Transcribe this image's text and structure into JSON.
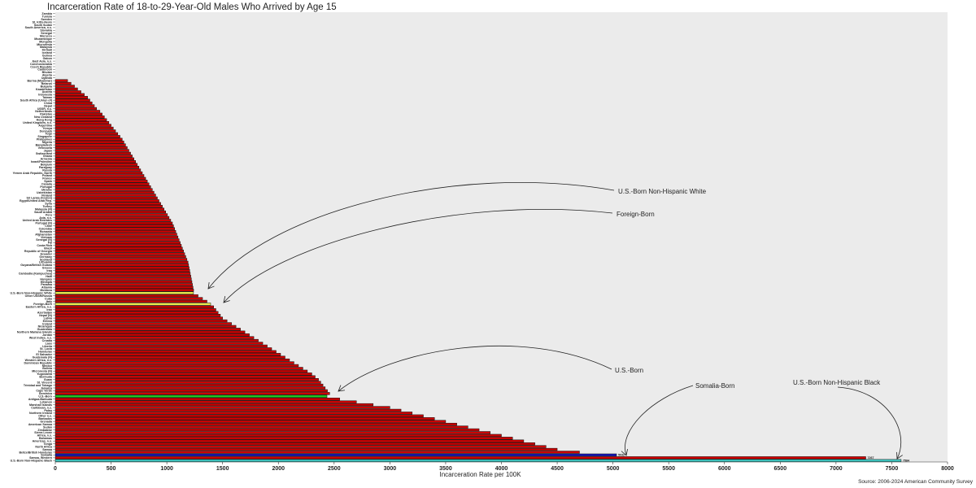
{
  "title": "Incarceration Rate of 18-to-29-Year-Old Males Who Arrived by Age 15",
  "source": "Source: 2006-2024 American Community Survey",
  "colors": {
    "panel": "#ebebeb",
    "bar": "#cc0000",
    "bar_outline": "#111111",
    "highlight_yellow": "#e8e84a",
    "highlight_green": "#22cc22",
    "highlight_blue": "#1515bb",
    "highlight_cyan": "#3fc6c0"
  },
  "annotations": [
    {
      "text": "U.S.-Born Non-Hispanic White",
      "target": "U.S.-Born Non-Hispanic White"
    },
    {
      "text": "Foreign-Born",
      "target": "Foreign-Born"
    },
    {
      "text": "U.S.-Born",
      "target": "U.S.-Born"
    },
    {
      "text": "Somalia-Born",
      "target": "Somalia"
    },
    {
      "text": "U.S.-Born Non-Hispanic Black",
      "target": "U.S.-Born Non-Hispanic Black"
    }
  ],
  "chart_data": {
    "type": "bar",
    "orientation": "horizontal",
    "title": "Incarceration Rate of 18-to-29-Year-Old Males Who Arrived by Age 15",
    "xlabel": "Incarceration Rate per 100K",
    "ylabel": "",
    "xlim": [
      0,
      8000
    ],
    "xticks": [
      0,
      500,
      1000,
      1500,
      2000,
      2500,
      3000,
      3500,
      4000,
      4500,
      5000,
      5500,
      6000,
      6500,
      7000,
      7500,
      8000
    ],
    "grid": false,
    "legend": "none",
    "categories": [
      "Zambia",
      "Tunisia",
      "Sweden",
      "St. Kitts-Nevis",
      "South Sudan",
      "South America, n.s.",
      "Slovakia",
      "Senegal",
      "Morocco",
      "Mozambique",
      "Mongolia",
      "Micronesia",
      "Malaysia",
      "Kiribati",
      "Iceland",
      "Guinea",
      "Gabon",
      "East Asia, n.s.",
      "Czechoslovakia",
      "Czech Republic",
      "Cameroon",
      "Bhutan",
      "Algeria",
      "Uganda",
      "Burma (Myanmar)",
      "Belarus",
      "Bulgaria",
      "Kazakhstan",
      "Austria",
      "Indonesia",
      "Taiwan",
      "South Africa (Union of)",
      "China",
      "Nepal",
      "USSR, n.s.",
      "Netherlands",
      "Pakistan",
      "New Zealand",
      "Hong Kong",
      "United Kingdom, n.s.",
      "Argentina",
      "Kenya",
      "Denmark",
      "Togo",
      "Singapore",
      "Philippines",
      "Nigeria",
      "Bangladesh",
      "Venezuela",
      "Japan",
      "Switzerland",
      "Ghana",
      "Armenia",
      "Israel/Palestine",
      "Belgium",
      "Paraguay",
      "Russia",
      "Yemen Arab Republic, North",
      "Poland",
      "France",
      "Spain",
      "Canada",
      "Portugal",
      "Ukraine",
      "Uzbekistan",
      "Finland",
      "Sri Lanka (Ceylon)",
      "Egypt/United Arab Rep.",
      "Syria",
      "Turkey",
      "Malaysia (N)",
      "Saudi Arabia",
      "Peru",
      "Asia, n.s.",
      "United Arab Emirates",
      "Portugal (N)",
      "Chile",
      "Colombia",
      "Romania",
      "Afghanistan",
      "Vietnam",
      "Senegal (N)",
      "Fiji",
      "Costa Rica",
      "Brazil",
      "Republic of Georgia",
      "Ecuador",
      "Germany",
      "Scotland",
      "Lithuania",
      "Guyana/British Guiana",
      "Greece",
      "Iraq",
      "Cambodia (Kampuchea)",
      "Haiti",
      "Hungary",
      "Ethiopia",
      "Panama",
      "Albania",
      "Moldova",
      "U.S.-Born Non-Hispanic White",
      "Other USSR/Russia",
      "Cuba",
      "Italy",
      "Foreign-Born",
      "Eastern Africa, n.s.",
      "Iran",
      "Azerbaijan",
      "Nepal (N)",
      "Latvia",
      "Eritrea",
      "Ireland",
      "Nicaragua",
      "Guatemala",
      "Northern Mariana Islands",
      "Jordan",
      "West Indies, n.s.",
      "Croatia",
      "Laos",
      "Liberia",
      "St. Lucia",
      "Honduras",
      "El Salvador",
      "Guatemala (N)",
      "Western Africa, n.s.",
      "Dominican Republic",
      "Mexico",
      "Bolivia",
      "Micronesia (N)",
      "Yugoslavia",
      "Bermuda",
      "Guam",
      "St. Vincent",
      "Trinidad and Tobago",
      "Jamaica",
      "Cape Verde",
      "Dominica",
      "U.S.-Born",
      "Antigua-Barbuda",
      "Lebanon",
      "Marshall Islands",
      "Caribbean, n.s.",
      "Palau",
      "Northern Ireland",
      "Other n.s.",
      "Barbados",
      "Grenada",
      "American Samoa",
      "Sudan",
      "Zimbabwe",
      "Sierra Leone",
      "Africa, n.s.",
      "Bahamas",
      "Americas, n.s.",
      "Tonga",
      "North Africa",
      "Samoa",
      "Belize/British Honduras",
      "Somalia",
      "Samoa, Western",
      "U.S.-Born Non-Hispanic Black"
    ],
    "values": [
      0,
      0,
      0,
      0,
      0,
      0,
      0,
      0,
      0,
      0,
      0,
      0,
      0,
      0,
      0,
      0,
      0,
      0,
      0,
      0,
      0,
      0,
      0,
      0,
      110,
      141,
      172,
      200,
      230,
      260,
      290,
      310,
      330,
      350,
      370,
      400,
      420,
      440,
      460,
      480,
      500,
      520,
      540,
      560,
      580,
      600,
      615,
      630,
      645,
      660,
      675,
      690,
      705,
      720,
      735,
      750,
      765,
      780,
      795,
      810,
      825,
      840,
      855,
      870,
      885,
      900,
      915,
      930,
      945,
      960,
      975,
      990,
      1005,
      1020,
      1035,
      1050,
      1060,
      1070,
      1080,
      1090,
      1100,
      1110,
      1120,
      1130,
      1140,
      1150,
      1160,
      1170,
      1180,
      1190,
      1195,
      1200,
      1205,
      1210,
      1215,
      1220,
      1225,
      1230,
      1235,
      1240,
      1239,
      1280,
      1320,
      1360,
      1393,
      1420,
      1440,
      1460,
      1480,
      1500,
      1540,
      1580,
      1620,
      1660,
      1700,
      1740,
      1780,
      1820,
      1860,
      1900,
      1940,
      1980,
      2020,
      2060,
      2100,
      2140,
      2180,
      2220,
      2260,
      2300,
      2330,
      2360,
      2380,
      2400,
      2420,
      2440,
      2460,
      2436,
      2550,
      2700,
      2850,
      3000,
      3100,
      3200,
      3300,
      3400,
      3500,
      3600,
      3700,
      3800,
      3900,
      4000,
      4100,
      4200,
      4300,
      4400,
      4500,
      4700,
      5032,
      7267,
      7584
    ],
    "value_labels": {
      "Somalia": "5032",
      "Samoa, Western": "7267",
      "U.S.-Born Non-Hispanic Black": "7584"
    },
    "highlights": {
      "U.S.-Born Non-Hispanic White": "highlight_yellow",
      "Foreign-Born": "highlight_yellow",
      "U.S.-Born": "highlight_green",
      "Somalia": "highlight_blue",
      "U.S.-Born Non-Hispanic Black": "highlight_cyan"
    }
  }
}
